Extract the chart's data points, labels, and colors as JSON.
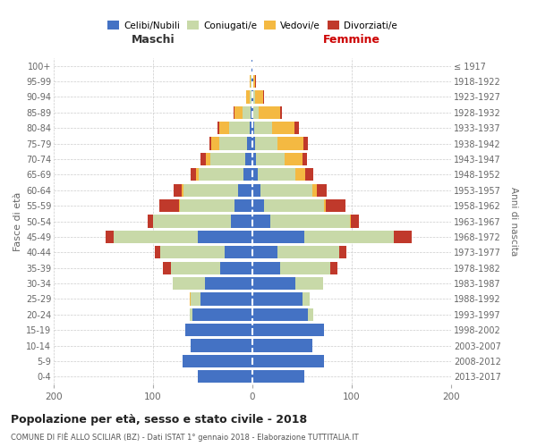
{
  "age_groups": [
    "0-4",
    "5-9",
    "10-14",
    "15-19",
    "20-24",
    "25-29",
    "30-34",
    "35-39",
    "40-44",
    "45-49",
    "50-54",
    "55-59",
    "60-64",
    "65-69",
    "70-74",
    "75-79",
    "80-84",
    "85-89",
    "90-94",
    "95-99",
    "100+"
  ],
  "birth_years": [
    "2013-2017",
    "2008-2012",
    "2003-2007",
    "1998-2002",
    "1993-1997",
    "1988-1992",
    "1983-1987",
    "1978-1982",
    "1973-1977",
    "1968-1972",
    "1963-1967",
    "1958-1962",
    "1953-1957",
    "1948-1952",
    "1943-1947",
    "1938-1942",
    "1933-1937",
    "1928-1932",
    "1923-1927",
    "1918-1922",
    "≤ 1917"
  ],
  "colors": {
    "celibi": "#4472C4",
    "coniugati": "#C8D9A8",
    "vedovi": "#F4B942",
    "divorziati": "#C0392B"
  },
  "maschi_celibi": [
    55,
    70,
    62,
    68,
    60,
    52,
    48,
    32,
    28,
    55,
    22,
    18,
    14,
    9,
    7,
    5,
    3,
    2,
    1,
    1,
    1
  ],
  "maschi_coniugati": [
    0,
    0,
    0,
    0,
    3,
    10,
    32,
    50,
    65,
    85,
    78,
    55,
    55,
    45,
    35,
    28,
    20,
    8,
    2,
    1,
    0
  ],
  "maschi_vedovi": [
    0,
    0,
    0,
    0,
    0,
    1,
    0,
    0,
    0,
    0,
    0,
    1,
    2,
    3,
    5,
    8,
    10,
    8,
    3,
    1,
    0
  ],
  "maschi_divorziati": [
    0,
    0,
    0,
    0,
    0,
    0,
    0,
    8,
    5,
    8,
    5,
    20,
    8,
    5,
    5,
    2,
    2,
    1,
    0,
    0,
    0
  ],
  "femmine_celibi": [
    52,
    72,
    60,
    72,
    56,
    50,
    43,
    28,
    25,
    52,
    18,
    12,
    8,
    5,
    4,
    3,
    2,
    1,
    1,
    1,
    0
  ],
  "femmine_coniugati": [
    0,
    0,
    0,
    0,
    5,
    8,
    28,
    50,
    62,
    90,
    80,
    60,
    52,
    38,
    28,
    22,
    18,
    5,
    2,
    0,
    0
  ],
  "femmine_vedovi": [
    0,
    0,
    0,
    0,
    0,
    0,
    0,
    0,
    0,
    0,
    1,
    2,
    5,
    10,
    18,
    26,
    22,
    22,
    8,
    2,
    0
  ],
  "femmine_divorziati": [
    0,
    0,
    0,
    0,
    0,
    0,
    0,
    8,
    8,
    18,
    8,
    20,
    10,
    8,
    5,
    5,
    5,
    2,
    1,
    1,
    0
  ],
  "title": "Popolazione per età, sesso e stato civile - 2018",
  "subtitle": "COMUNE DI FIÈ ALLO SCILIAR (BZ) - Dati ISTAT 1° gennaio 2018 - Elaborazione TUTTITALIA.IT",
  "ylabel_left": "Fasce di età",
  "ylabel_right": "Anni di nascita",
  "label_maschi": "Maschi",
  "label_femmine": "Femmine",
  "legend_labels": [
    "Celibi/Nubili",
    "Coniugati/e",
    "Vedovi/e",
    "Divorziati/e"
  ],
  "xlim": 200,
  "background_color": "#FFFFFF",
  "grid_color": "#CCCCCC",
  "bar_height": 0.82
}
